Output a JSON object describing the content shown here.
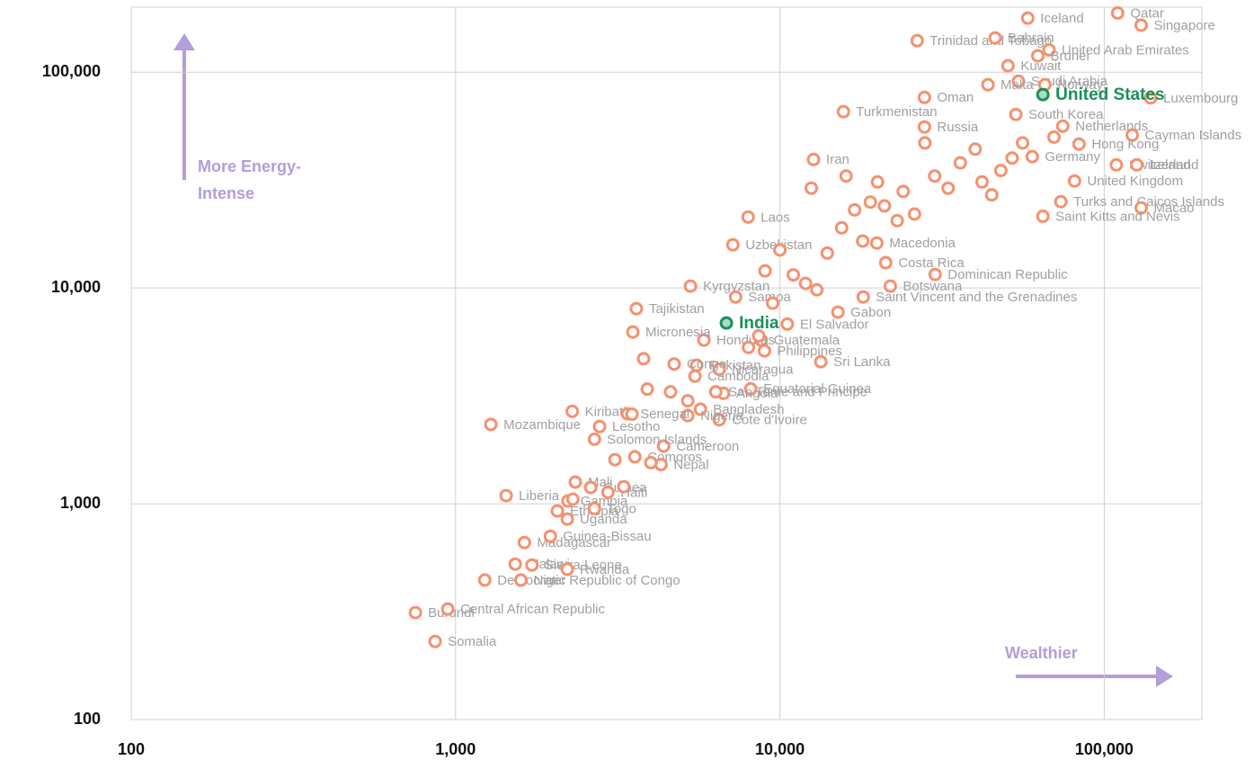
{
  "chart_data": {
    "type": "scatter",
    "log_x": true,
    "log_y": true,
    "grid": true,
    "xlim": [
      100,
      200000
    ],
    "ylim": [
      100,
      200000
    ],
    "xticks": [
      100,
      {
        "value": 1000,
        "label": "1,000"
      },
      {
        "value": 10000,
        "label": "10,000"
      },
      {
        "value": 100000,
        "label": "100,000"
      }
    ],
    "yticks": [
      100,
      {
        "value": 1000,
        "label": "1,000"
      },
      {
        "value": 10000,
        "label": "10,000"
      },
      {
        "value": 100000,
        "label": "100,000"
      }
    ],
    "annotations": {
      "y_arrow": [
        "More Energy-",
        "Intense"
      ],
      "x_arrow": "Wealthier"
    },
    "series": [
      {
        "color": "#f4916f",
        "label_color": "#a0a0a0",
        "labels": [
          "Somalia",
          "Burundi",
          "Central African Republic",
          "Democratic Republic of Congo",
          "Malawi",
          "Niger",
          "Sierra Leone",
          "Rwanda",
          "Madagascar",
          "Guinea-Bissau",
          "Uganda",
          "Liberia",
          "Ethiopia",
          "Gambia",
          "Mali",
          "Guinea",
          "Haiti",
          "Togo",
          "Comoros",
          "Nepal",
          "Cameroon",
          "Solomon Islands",
          "Mozambique",
          "Lesotho",
          "Kiribati",
          "Bangladesh",
          "Cote d'Ivoire",
          "Nigeria",
          "Senegal",
          "Angola",
          "Equatorial Guinea",
          "Sao Tome and Principe",
          "Cambodia",
          "Pakistan",
          "Nicaragua",
          "Congo",
          "Sri Lanka",
          "Philippines",
          "Guatemala",
          "Honduras",
          "Micronesia",
          "El Salvador",
          "Tajikistan",
          "Kyrgyzstan",
          "Samoa",
          "Gabon",
          "Saint Vincent and the Grenadines",
          "Botswana",
          "Dominican Republic",
          "Costa Rica",
          "Macedonia",
          "Uzbekistan",
          "Laos",
          "Iran",
          "Turkmenistan",
          "Oman",
          "Russia",
          "Trinidad and Tobago",
          "Bahrain",
          "Iceland",
          "Qatar",
          "Singapore",
          "United Arab Emirates",
          "Brunei",
          "Kuwait",
          "Saudi Arabia",
          "Norway",
          "Malta",
          "Luxembourg",
          "South Korea",
          "Netherlands",
          "Cayman Islands",
          "Hong Kong",
          "Germany",
          "Switzerland",
          "Ireland",
          "United Kingdom",
          "Turks and Caicos Islands",
          "Macao",
          "Saint Kitts and Nevis",
          null,
          null,
          null,
          null,
          null,
          null,
          null,
          null,
          null,
          null,
          null,
          null,
          null,
          null,
          null,
          null,
          null,
          null,
          null,
          null,
          null,
          null,
          null,
          null,
          null,
          null,
          null,
          null,
          null,
          null,
          null,
          null,
          null,
          null,
          null,
          null,
          null,
          null,
          null,
          null
        ],
        "x": [
          865,
          752,
          946,
          1230,
          1527,
          1590,
          1720,
          2210,
          1630,
          1960,
          2210,
          1432,
          2060,
          2220,
          2340,
          2610,
          2950,
          2680,
          3570,
          4300,
          4380,
          2680,
          1285,
          2780,
          2290,
          5690,
          6500,
          5200,
          3390,
          6700,
          8130,
          6340,
          5470,
          5540,
          6500,
          4720,
          13370,
          8960,
          8750,
          5830,
          3520,
          10540,
          3610,
          5300,
          7300,
          15100,
          18070,
          21900,
          30100,
          21200,
          19900,
          7160,
          7980,
          12700,
          15700,
          27900,
          27900,
          26500,
          46100,
          58100,
          110000,
          130000,
          67600,
          62400,
          50500,
          54400,
          65600,
          43800,
          139000,
          53400,
          74500,
          122000,
          83600,
          60000,
          109000,
          126000,
          81000,
          73500,
          130000,
          64700,
          2300,
          3300,
          3100,
          4000,
          3500,
          3900,
          4600,
          3800,
          5200,
          9000,
          10000,
          11000,
          12000,
          13000,
          14000,
          15500,
          17000,
          18000,
          19000,
          21000,
          23000,
          24000,
          26000,
          28000,
          30000,
          33000,
          36000,
          40000,
          42000,
          45000,
          48000,
          52000,
          56000,
          70000,
          12500,
          16000,
          20000,
          8000,
          8600,
          9500
        ],
        "values": [
          230,
          313,
          325,
          443,
          525,
          443,
          520,
          497,
          661,
          707,
          849,
          1090,
          926,
          1030,
          1260,
          1190,
          1130,
          950,
          1650,
          1520,
          1850,
          1990,
          2330,
          2280,
          2680,
          2740,
          2450,
          2560,
          2610,
          3250,
          3410,
          3300,
          3900,
          4380,
          4200,
          4440,
          4550,
          5110,
          5730,
          5730,
          6250,
          6800,
          8020,
          10200,
          9080,
          7720,
          9080,
          10200,
          11550,
          13100,
          16150,
          15850,
          21300,
          39400,
          65600,
          76400,
          55700,
          140000,
          144000,
          178000,
          188000,
          165000,
          127000,
          119000,
          107000,
          90800,
          87500,
          87500,
          76000,
          63700,
          56200,
          51100,
          46400,
          40600,
          37200,
          37200,
          31300,
          25100,
          23500,
          21500,
          1050,
          1200,
          1600,
          1550,
          2600,
          3400,
          3300,
          4700,
          3000,
          12000,
          15000,
          11500,
          10500,
          9800,
          14500,
          19000,
          23000,
          16500,
          25000,
          24000,
          20500,
          28000,
          22000,
          47000,
          33000,
          29000,
          38000,
          44000,
          31000,
          27000,
          35000,
          40000,
          47000,
          50000,
          29000,
          33000,
          31000,
          5300,
          6000,
          8500
        ]
      },
      {
        "color": "#1a8f5a",
        "fill": "#a8dcc0",
        "label_color": "#1a8f5a",
        "bold": true,
        "labels": [
          "India",
          "United States"
        ],
        "x": [
          6840,
          64700
        ],
        "values": [
          6880,
          78700
        ]
      }
    ]
  }
}
